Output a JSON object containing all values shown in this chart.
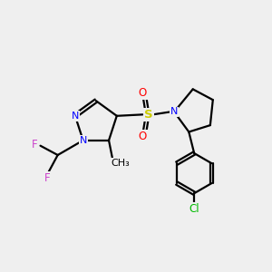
{
  "bg_color": "#efefef",
  "bond_color": "#000000",
  "N_color": "#0000ff",
  "F_color": "#cc44cc",
  "S_color": "#cccc00",
  "O_color": "#ff0000",
  "Cl_color": "#00bb00",
  "line_width": 1.6,
  "figsize": [
    3.0,
    3.0
  ],
  "dpi": 100,
  "xlim": [
    0,
    10
  ],
  "ylim": [
    0,
    10
  ]
}
